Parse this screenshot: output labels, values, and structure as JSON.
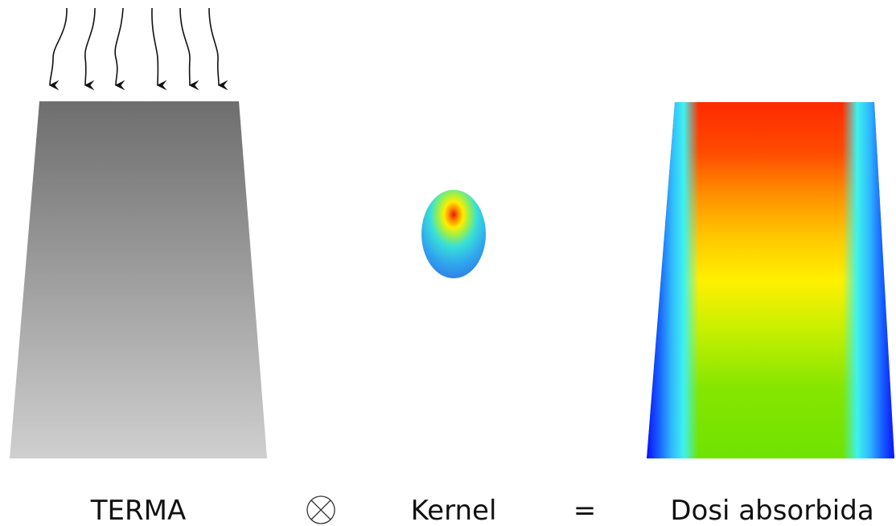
{
  "labels": {
    "terma": "TERMA",
    "kernel": "Kernel",
    "equals": "=",
    "dose": "Dosi absorbida"
  },
  "operator_icon": "circled-times-icon",
  "incoming_rays_count": 6,
  "colors": {
    "terma_top": "#6e6e6e",
    "terma_bottom": "#cfcfcf",
    "dose_high": "#ff2a00",
    "dose_mid": "#ffe600",
    "dose_low_center": "#6fe300",
    "dose_edge": "#1212ff",
    "dose_cyan": "#3ef2ee"
  }
}
